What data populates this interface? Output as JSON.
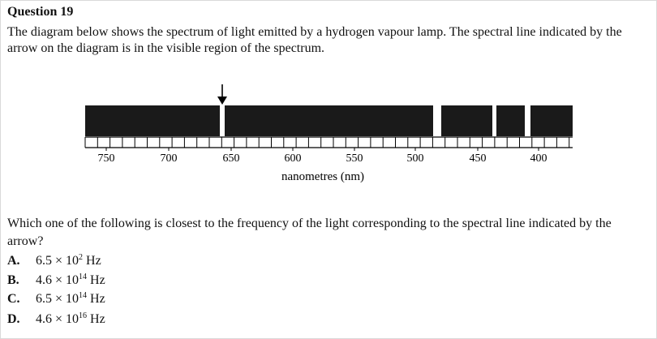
{
  "question": {
    "title": "Question 19",
    "intro": "The diagram below shows the spectrum of light emitted by a hydrogen vapour lamp. The spectral line indicated by the arrow on the diagram is in the visible region of the spectrum.",
    "prompt": "Which one of the following is closest to the frequency of the light corresponding to the spectral line indicated by the arrow?"
  },
  "diagram": {
    "axis_label": "nanometres (nm)",
    "tick_labels": [
      "750",
      "700",
      "650",
      "600",
      "550",
      "500",
      "450",
      "400"
    ],
    "line_color": "#000000",
    "arrow_line_nm": 655,
    "visible_gaps_nm": [
      655,
      489,
      435,
      409
    ]
  },
  "options": [
    {
      "letter": "A.",
      "mantissa": "6.5 × 10",
      "exponent": "2",
      "unit": " Hz"
    },
    {
      "letter": "B.",
      "mantissa": "4.6 × 10",
      "exponent": "14",
      "unit": " Hz"
    },
    {
      "letter": "C.",
      "mantissa": "6.5 × 10",
      "exponent": "14",
      "unit": " Hz"
    },
    {
      "letter": "D.",
      "mantissa": "4.6 × 10",
      "exponent": "16",
      "unit": " Hz"
    }
  ]
}
